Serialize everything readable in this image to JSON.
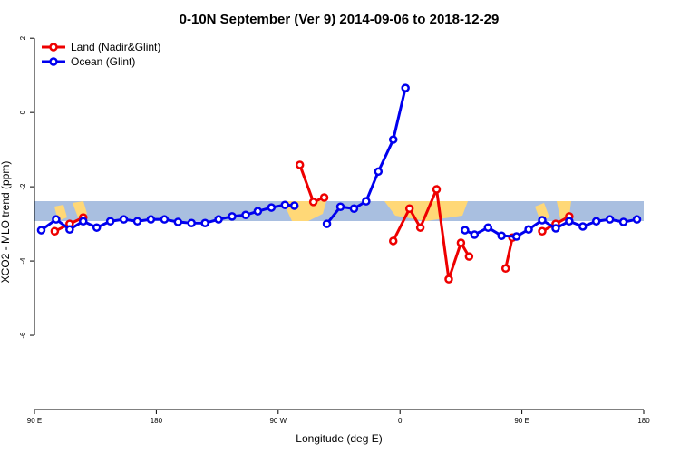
{
  "chart_data": {
    "type": "line",
    "title": "0-10N September (Ver 9)   2014-09-06 to 2018-12-29",
    "x_label": "Longitude (deg E)",
    "y_label": "XCO2 - MLO trend (ppm)",
    "xlim": [
      90,
      540
    ],
    "ylim": [
      -8,
      2.2
    ],
    "xticks": [
      {
        "value": 90,
        "label": "90 E"
      },
      180,
      {
        "value": 270,
        "label": "90 W"
      },
      {
        "value": 360,
        "label": "0"
      },
      {
        "value": 450,
        "label": "90 E"
      },
      {
        "value": 540,
        "label": "180"
      }
    ],
    "yticks": [
      2,
      0,
      -2,
      -4,
      -6
    ],
    "legend": "top-left",
    "series": [
      {
        "name": "Land (Nadir&Glint)",
        "color": "#ee0000",
        "x": [
          105,
          116,
          126,
          null,
          286,
          296,
          304,
          null,
          355,
          367,
          375,
          387,
          396,
          405,
          411,
          null,
          438,
          443,
          null,
          465,
          475,
          485
        ],
        "values": [
          -3.2,
          -3.0,
          -2.83,
          null,
          -1.41,
          -2.41,
          -2.29,
          null,
          -3.46,
          -2.59,
          -3.1,
          -2.07,
          -4.49,
          -3.51,
          -3.88,
          null,
          -4.2,
          -3.37,
          null,
          -3.2,
          -3.0,
          -2.8
        ]
      },
      {
        "name": "Ocean (Glint)",
        "color": "#0000ee",
        "x": [
          95,
          106,
          116,
          126,
          136,
          146,
          156,
          166,
          176,
          186,
          196,
          206,
          216,
          226,
          236,
          246,
          255,
          265,
          275,
          282,
          null,
          306,
          316,
          326,
          335,
          344,
          355,
          364,
          null,
          408,
          415,
          425,
          435,
          446,
          455,
          465,
          475,
          485,
          495,
          505,
          515,
          525,
          535
        ],
        "values": [
          -3.17,
          -2.88,
          -3.15,
          -2.93,
          -3.1,
          -2.93,
          -2.88,
          -2.93,
          -2.88,
          -2.88,
          -2.95,
          -2.98,
          -2.98,
          -2.88,
          -2.8,
          -2.76,
          -2.66,
          -2.56,
          -2.49,
          -2.51,
          null,
          -3.0,
          -2.54,
          -2.59,
          -2.39,
          -1.59,
          -0.73,
          0.66,
          null,
          -3.17,
          -3.29,
          -3.1,
          -3.32,
          -3.34,
          -3.15,
          -2.9,
          -3.12,
          -2.93,
          -3.07,
          -2.93,
          -2.88,
          -2.95,
          -2.88
        ]
      }
    ]
  }
}
